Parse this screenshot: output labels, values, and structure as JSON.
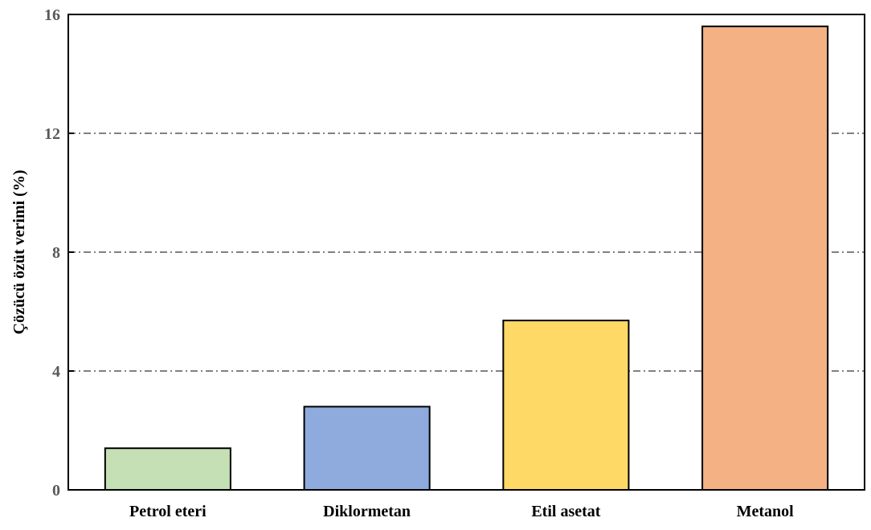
{
  "chart_data": {
    "type": "bar",
    "title": "",
    "xlabel": "",
    "ylabel": "Çözücü özüt verimi (%)",
    "categories": [
      "Petrol eteri",
      "Diklormetan",
      "Etil asetat",
      "Metanol"
    ],
    "values": [
      1.4,
      2.8,
      5.7,
      15.6
    ],
    "colors": [
      "#c5e0b4",
      "#8faadc",
      "#ffd966",
      "#f4b183"
    ],
    "ylim": [
      0,
      16
    ],
    "yticks": [
      0,
      4,
      8,
      12,
      16
    ],
    "grid": "horizontal dash-dot",
    "legend": "none"
  }
}
